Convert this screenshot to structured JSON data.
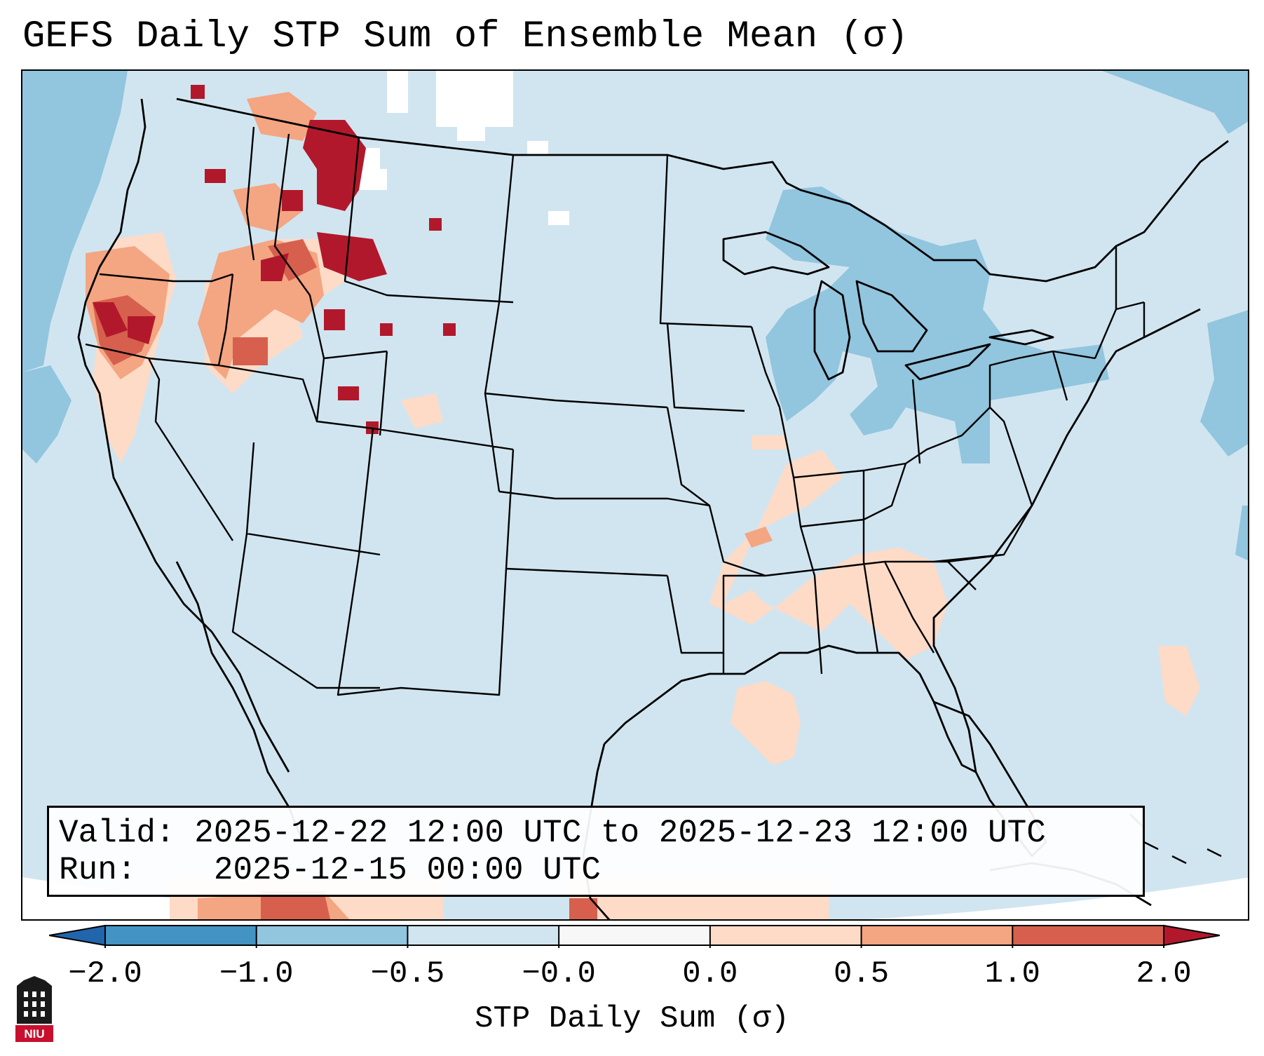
{
  "title": "GEFS Daily STP Sum of Ensemble Mean (σ)",
  "valid_box": {
    "valid_label": "Valid:",
    "valid_value": "2025-12-22 12:00 UTC to 2025-12-23 12:00 UTC",
    "run_label": "Run:",
    "run_value": "2025-12-15 00:00 UTC"
  },
  "colorbar": {
    "label": "STP Daily Sum (σ)",
    "ticks": [
      "−2.0",
      "−1.0",
      "−0.5",
      "−0.0",
      "0.0",
      "0.5",
      "1.0",
      "2.0"
    ],
    "bins": [
      {
        "range": "<-2.0",
        "color": "#2166ac"
      },
      {
        "range": "-2.0 to -1.0",
        "color": "#4393c3"
      },
      {
        "range": "-1.0 to -0.5",
        "color": "#92c5de"
      },
      {
        "range": "-0.5 to -0.0",
        "color": "#d1e5f0"
      },
      {
        "range": "-0.0 to 0.0",
        "color": "#f7f7f7"
      },
      {
        "range": "0.0 to 0.5",
        "color": "#fddbc7"
      },
      {
        "range": "0.5 to 1.0",
        "color": "#f4a582"
      },
      {
        "range": "1.0 to 2.0",
        "color": "#d6604d"
      },
      {
        "range": ">2.0",
        "color": "#b2182b"
      }
    ]
  },
  "colors": {
    "ocean_background": "#d1e5f0",
    "negative_anomaly": "#92c5de",
    "near_zero": "#f7f7f7",
    "slight_positive": "#fddbc7",
    "moderate_positive": "#f4a582",
    "high_positive": "#d6604d",
    "very_high_positive": "#b2182b",
    "border_line": "#000000"
  },
  "logo": {
    "text": "NIU",
    "name": "niu-logo"
  }
}
